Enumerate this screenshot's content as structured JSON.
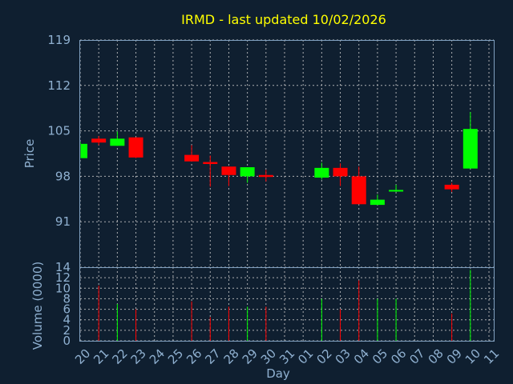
{
  "chart_data": {
    "type": "candlestick",
    "title": "IRMD - last updated 10/02/2026",
    "xlabel": "Day",
    "price_ylabel": "Price",
    "volume_ylabel": "Volume (0000)",
    "price_ylim": [
      84,
      119
    ],
    "price_yticks": [
      91,
      98,
      105,
      112,
      119
    ],
    "volume_ylim": [
      0,
      14
    ],
    "volume_yticks": [
      0,
      2,
      4,
      6,
      8,
      10,
      12,
      14
    ],
    "days": [
      "20",
      "21",
      "22",
      "23",
      "24",
      "25",
      "26",
      "27",
      "28",
      "29",
      "30",
      "31",
      "01",
      "02",
      "03",
      "04",
      "05",
      "06",
      "07",
      "08",
      "09",
      "10",
      "11"
    ],
    "up_color": "#00ff00",
    "down_color": "#ff0000",
    "candles": [
      {
        "day": "20",
        "open": 100.8,
        "high": 103.3,
        "low": 100.8,
        "close": 103.0,
        "volume": 0
      },
      {
        "day": "21",
        "open": 103.8,
        "high": 104.2,
        "low": 102.8,
        "close": 103.2,
        "volume": 10.5
      },
      {
        "day": "22",
        "open": 102.7,
        "high": 104.9,
        "low": 102.7,
        "close": 103.8,
        "volume": 7.0
      },
      {
        "day": "23",
        "open": 104.0,
        "high": 104.0,
        "low": 100.8,
        "close": 100.9,
        "volume": 6.0
      },
      {
        "day": "26",
        "open": 101.3,
        "high": 102.8,
        "low": 100.3,
        "close": 100.3,
        "volume": 7.5
      },
      {
        "day": "27",
        "open": 100.2,
        "high": 101.2,
        "low": 96.4,
        "close": 99.9,
        "volume": 4.5
      },
      {
        "day": "28",
        "open": 99.5,
        "high": 99.5,
        "low": 96.5,
        "close": 98.2,
        "volume": 6.5
      },
      {
        "day": "29",
        "open": 98.0,
        "high": 99.4,
        "low": 97.0,
        "close": 99.4,
        "volume": 6.5
      },
      {
        "day": "30",
        "open": 98.2,
        "high": 99.0,
        "low": 97.2,
        "close": 97.9,
        "volume": 6.5
      },
      {
        "day": "02",
        "open": 97.8,
        "high": 100.1,
        "low": 97.5,
        "close": 99.3,
        "volume": 8.0
      },
      {
        "day": "03",
        "open": 99.3,
        "high": 100.0,
        "low": 96.5,
        "close": 98.0,
        "volume": 6.0
      },
      {
        "day": "04",
        "open": 98.0,
        "high": 99.5,
        "low": 93.7,
        "close": 93.7,
        "volume": 11.5
      },
      {
        "day": "05",
        "open": 93.6,
        "high": 95.2,
        "low": 93.6,
        "close": 94.4,
        "volume": 8.0
      },
      {
        "day": "06",
        "open": 95.8,
        "high": 96.7,
        "low": 95.6,
        "close": 95.9,
        "volume": 8.0
      },
      {
        "day": "09",
        "open": 96.7,
        "high": 97.0,
        "low": 95.6,
        "close": 96.0,
        "volume": 5.2
      },
      {
        "day": "10",
        "open": 99.2,
        "high": 107.9,
        "low": 99.2,
        "close": 105.3,
        "volume": 13.5
      }
    ]
  }
}
